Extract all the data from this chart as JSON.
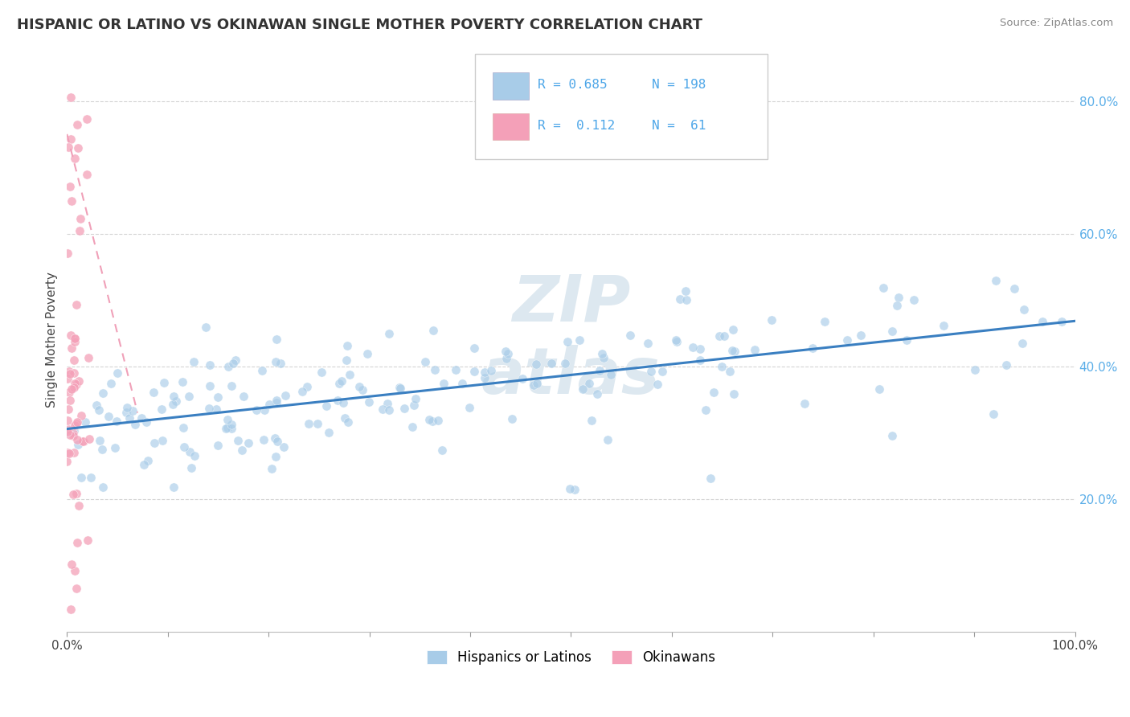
{
  "title": "HISPANIC OR LATINO VS OKINAWAN SINGLE MOTHER POVERTY CORRELATION CHART",
  "source": "Source: ZipAtlas.com",
  "ylabel": "Single Mother Poverty",
  "xlim": [
    0,
    1.0
  ],
  "ylim": [
    0,
    0.88
  ],
  "blue_color": "#a8cce8",
  "pink_color": "#f4a0b8",
  "trendline_blue": "#3a7fc1",
  "trendline_pink": "#f0a0b8",
  "xtick_labels": [
    "0.0%",
    "",
    "",
    "",
    "",
    "",
    "",
    "",
    "",
    "",
    "100.0%"
  ],
  "xtick_vals": [
    0.0,
    0.1,
    0.2,
    0.3,
    0.4,
    0.5,
    0.6,
    0.7,
    0.8,
    0.9,
    1.0
  ],
  "ytick_labels": [
    "20.0%",
    "40.0%",
    "60.0%",
    "80.0%"
  ],
  "ytick_vals": [
    0.2,
    0.4,
    0.6,
    0.8
  ],
  "ytick_color": "#5baee8",
  "legend_labels": [
    "Hispanics or Latinos",
    "Okinawans"
  ],
  "background_color": "#ffffff",
  "grid_color": "#d0d0d0",
  "watermark_color": "#dde8f0"
}
